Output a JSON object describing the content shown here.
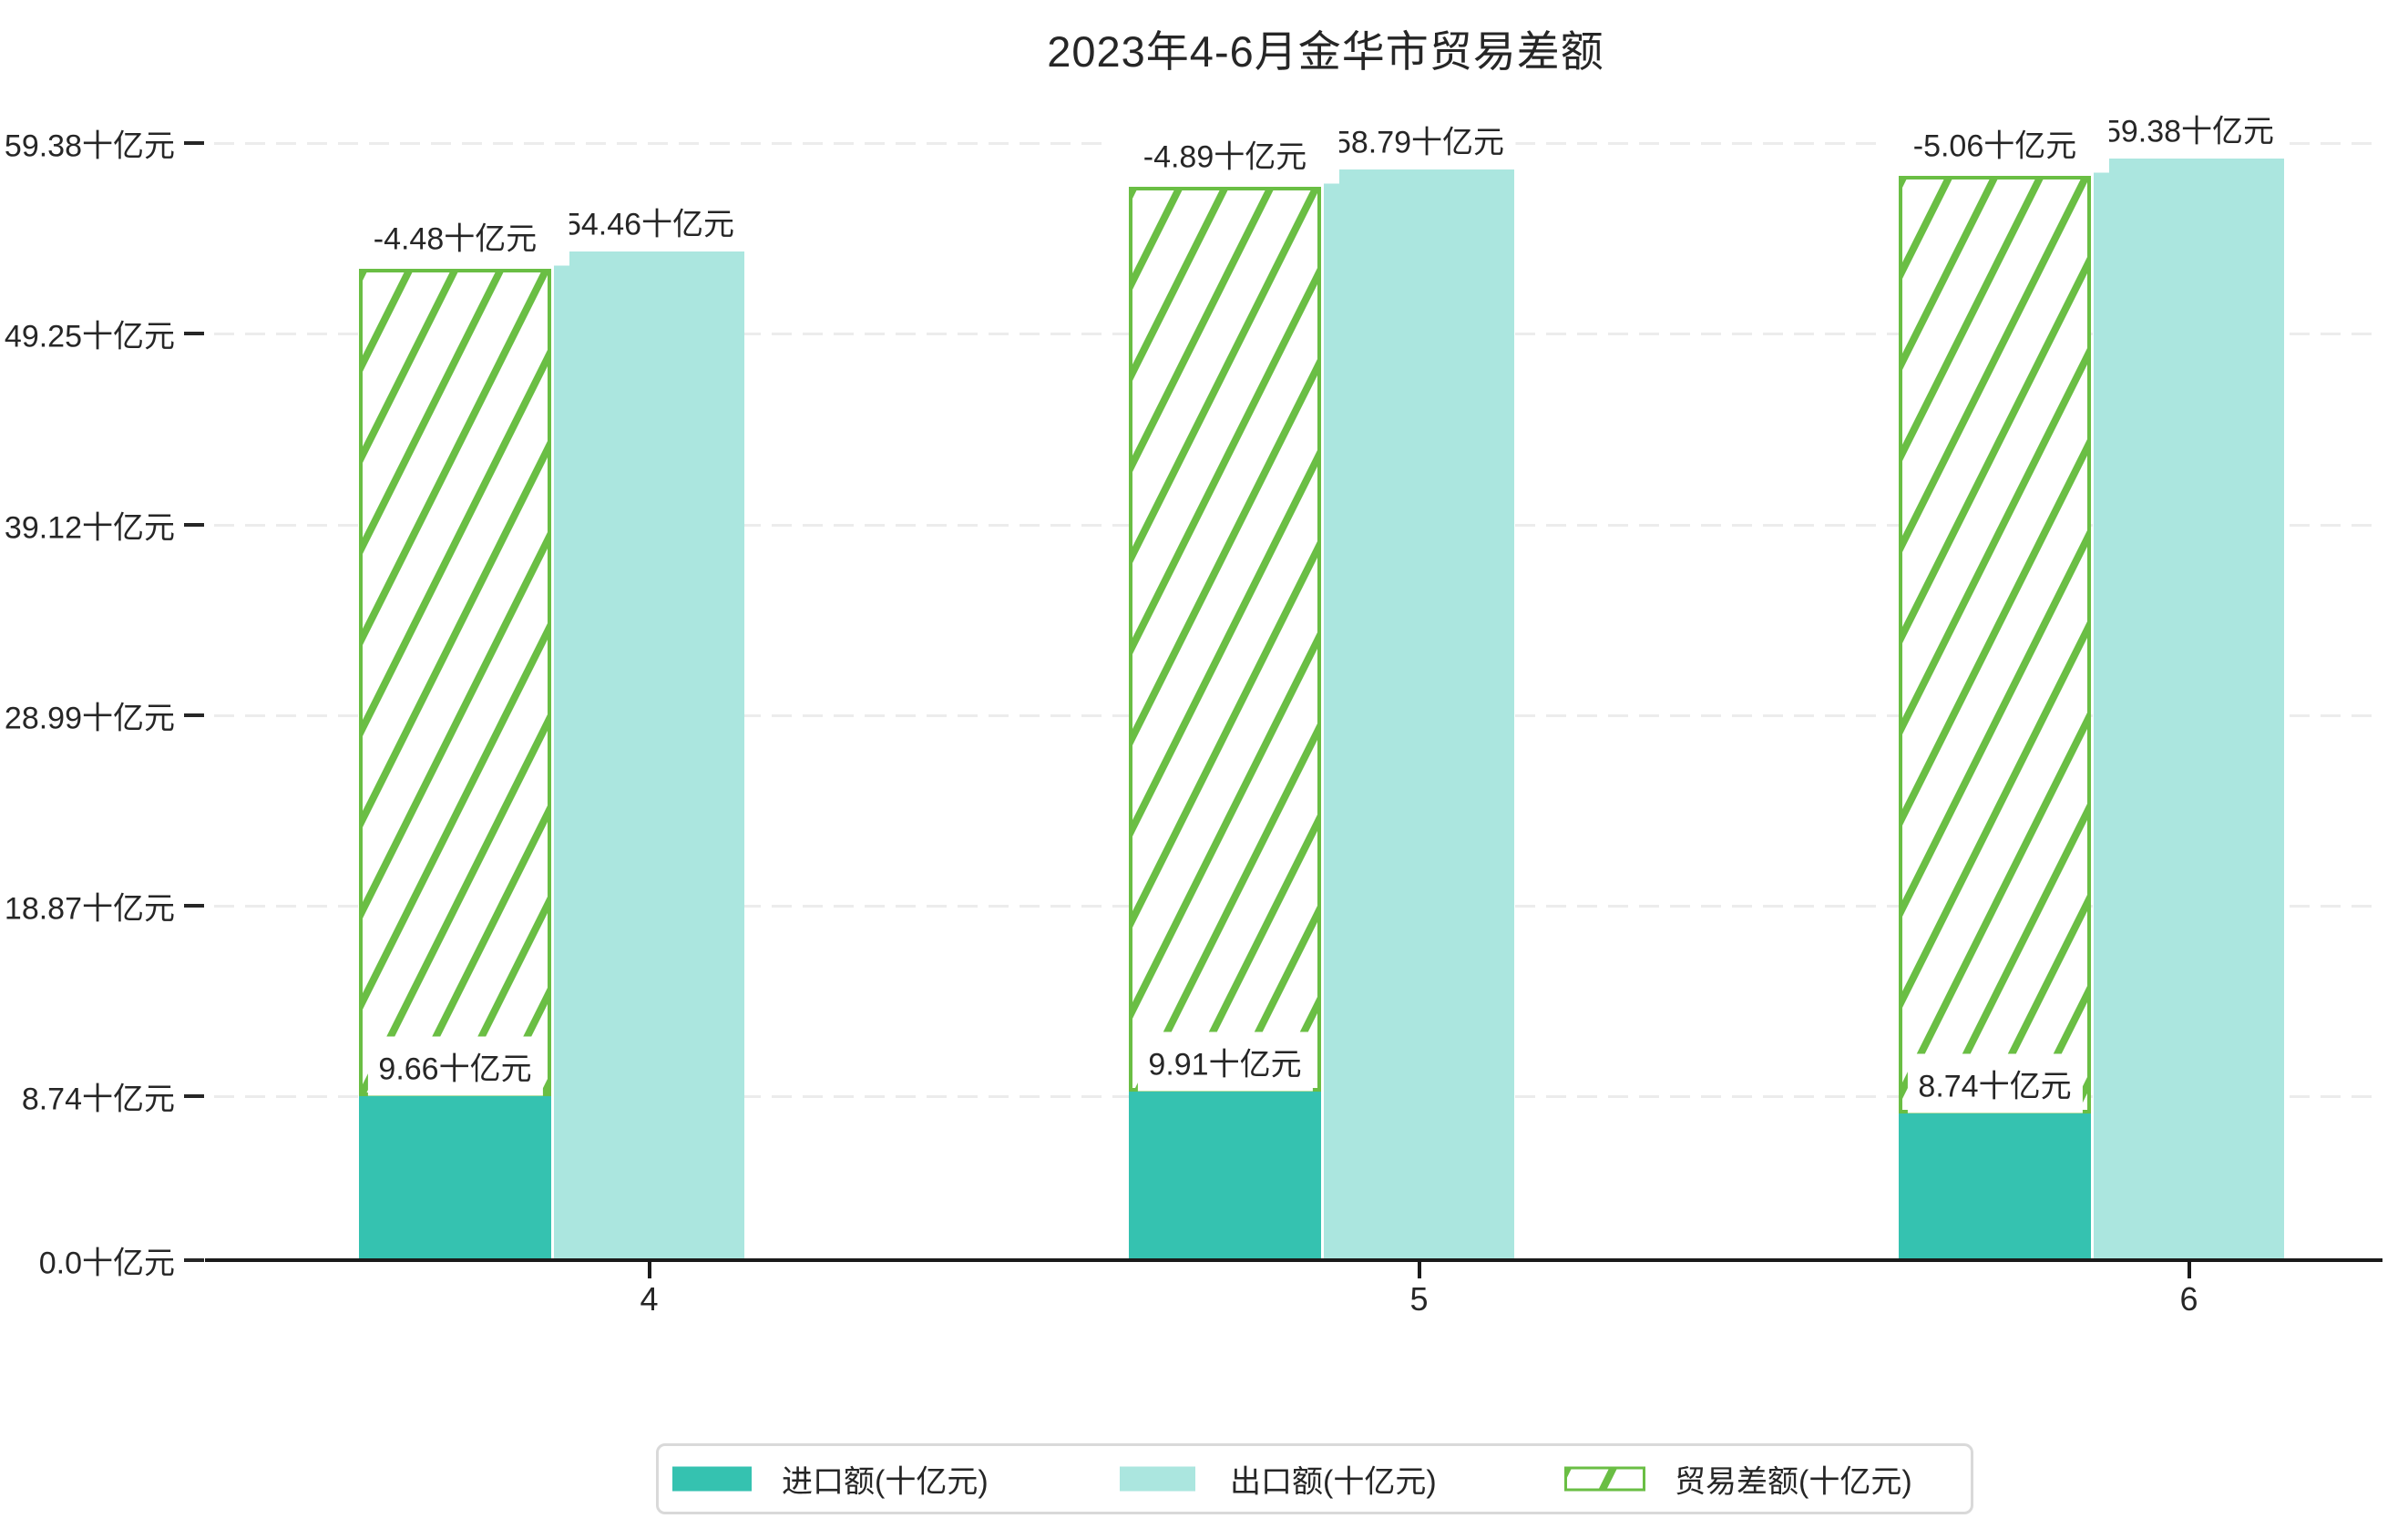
{
  "title": "2023年4-6月金华市贸易差额",
  "colors": {
    "import_teal": "#35c2b0",
    "export_cyan": "#abe6df",
    "hatch_green": "#6abe44",
    "grid_gray": "#ececec",
    "axis_black": "#1a1a1a",
    "text": "#262626",
    "legend_border_gray": "#d9d9d9",
    "label_background": "#ffffff"
  },
  "y_axis": {
    "tick_labels": [
      "0.0十亿元",
      "8.74十亿元",
      "18.87十亿元",
      "28.99十亿元",
      "39.12十亿元",
      "49.25十亿元",
      "59.38十亿元"
    ],
    "tick_values": [
      0,
      8.74,
      18.87,
      28.99,
      39.12,
      49.25,
      59.38
    ]
  },
  "x_axis": {
    "tick_labels": [
      "4",
      "5",
      "6"
    ]
  },
  "bars": {
    "import_values": [
      9.66,
      9.91,
      8.74
    ],
    "export_values": [
      54.46,
      58.79,
      59.38
    ],
    "balance_values": [
      -4.48,
      -4.89,
      -5.06
    ],
    "import_labels": [
      "9.66十亿元",
      "9.91十亿元",
      "8.74十亿元"
    ],
    "export_labels": [
      "54.46十亿元",
      "58.79十亿元",
      "59.38十亿元"
    ],
    "balance_labels": [
      "-4.48十亿元",
      "-4.89十亿元",
      "-5.06十亿元"
    ]
  },
  "legend": {
    "items": [
      {
        "label": "进口额(十亿元)",
        "swatch": "import"
      },
      {
        "label": "出口额(十亿元)",
        "swatch": "export"
      },
      {
        "label": "贸易差额(十亿元)",
        "swatch": "hatch"
      }
    ]
  },
  "chart_data": {
    "type": "bar",
    "title": "2023年4-6月金华市贸易差额",
    "categories": [
      "4",
      "5",
      "6"
    ],
    "series": [
      {
        "name": "进口额(十亿元)",
        "values": [
          9.66,
          9.91,
          8.74
        ]
      },
      {
        "name": "出口额(十亿元)",
        "values": [
          54.46,
          58.79,
          59.38
        ]
      },
      {
        "name": "贸易差额(十亿元)",
        "values": [
          -4.48,
          -4.89,
          -5.06
        ]
      }
    ],
    "unit": "十亿元",
    "yticks": [
      0,
      8.74,
      18.87,
      28.99,
      39.12,
      49.25,
      59.38
    ],
    "ylim": [
      0,
      59.38
    ],
    "grid": true,
    "grid_style": "dashed-horizontal",
    "legend_position": "bottom",
    "notes": "贸易差额 series rendered as white bar with green diagonal hatch stacked above 进口额 bar, reaching the 出口额 height"
  }
}
